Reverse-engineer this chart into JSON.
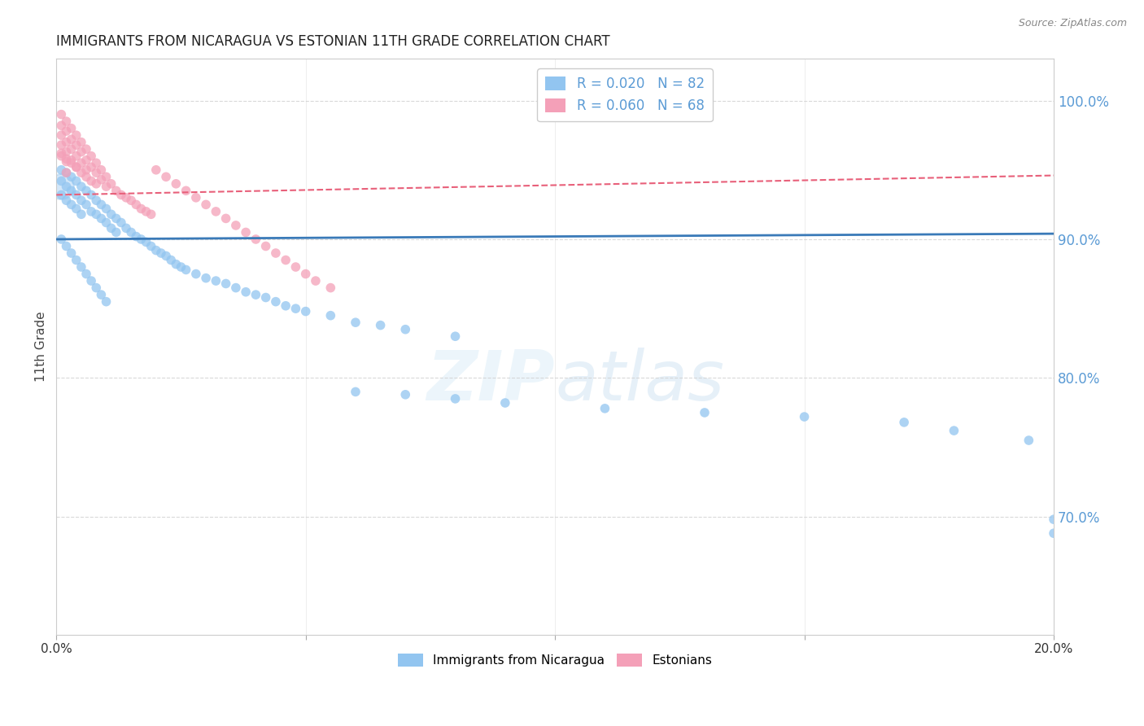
{
  "title": "IMMIGRANTS FROM NICARAGUA VS ESTONIAN 11TH GRADE CORRELATION CHART",
  "source": "Source: ZipAtlas.com",
  "ylabel": "11th Grade",
  "watermark": "ZIPatlas",
  "blue_r": 0.02,
  "blue_n": 82,
  "pink_r": 0.06,
  "pink_n": 68,
  "y_tick_labels": [
    "100.0%",
    "90.0%",
    "80.0%",
    "70.0%"
  ],
  "y_tick_values": [
    1.0,
    0.9,
    0.8,
    0.7
  ],
  "x_lim": [
    0.0,
    0.2
  ],
  "y_lim": [
    0.615,
    1.03
  ],
  "blue_color": "#92c5f0",
  "pink_color": "#f4a0b8",
  "blue_line_color": "#3a7ab8",
  "pink_line_color": "#e8607a",
  "grid_color": "#d0d0d0",
  "right_axis_color": "#5b9bd5",
  "title_fontsize": 12,
  "source_fontsize": 9,
  "blue_scatter_x": [
    0.001,
    0.001,
    0.001,
    0.002,
    0.002,
    0.002,
    0.003,
    0.003,
    0.003,
    0.004,
    0.004,
    0.004,
    0.005,
    0.005,
    0.005,
    0.006,
    0.006,
    0.007,
    0.007,
    0.008,
    0.008,
    0.009,
    0.009,
    0.01,
    0.01,
    0.011,
    0.011,
    0.012,
    0.012,
    0.013,
    0.014,
    0.015,
    0.016,
    0.017,
    0.018,
    0.019,
    0.02,
    0.021,
    0.022,
    0.023,
    0.024,
    0.025,
    0.026,
    0.028,
    0.03,
    0.032,
    0.034,
    0.036,
    0.038,
    0.04,
    0.042,
    0.044,
    0.046,
    0.048,
    0.05,
    0.055,
    0.06,
    0.065,
    0.07,
    0.08,
    0.001,
    0.002,
    0.003,
    0.004,
    0.005,
    0.006,
    0.007,
    0.008,
    0.009,
    0.01,
    0.06,
    0.07,
    0.08,
    0.09,
    0.11,
    0.13,
    0.15,
    0.17,
    0.18,
    0.195,
    0.2,
    0.2
  ],
  "blue_scatter_y": [
    0.95,
    0.942,
    0.932,
    0.948,
    0.938,
    0.928,
    0.945,
    0.935,
    0.925,
    0.942,
    0.932,
    0.922,
    0.938,
    0.928,
    0.918,
    0.935,
    0.925,
    0.932,
    0.92,
    0.928,
    0.918,
    0.925,
    0.915,
    0.922,
    0.912,
    0.918,
    0.908,
    0.915,
    0.905,
    0.912,
    0.908,
    0.905,
    0.902,
    0.9,
    0.898,
    0.895,
    0.892,
    0.89,
    0.888,
    0.885,
    0.882,
    0.88,
    0.878,
    0.875,
    0.872,
    0.87,
    0.868,
    0.865,
    0.862,
    0.86,
    0.858,
    0.855,
    0.852,
    0.85,
    0.848,
    0.845,
    0.84,
    0.838,
    0.835,
    0.83,
    0.9,
    0.895,
    0.89,
    0.885,
    0.88,
    0.875,
    0.87,
    0.865,
    0.86,
    0.855,
    0.79,
    0.788,
    0.785,
    0.782,
    0.778,
    0.775,
    0.772,
    0.768,
    0.762,
    0.755,
    0.698,
    0.688
  ],
  "pink_scatter_x": [
    0.001,
    0.001,
    0.001,
    0.001,
    0.001,
    0.002,
    0.002,
    0.002,
    0.002,
    0.002,
    0.002,
    0.003,
    0.003,
    0.003,
    0.003,
    0.004,
    0.004,
    0.004,
    0.004,
    0.005,
    0.005,
    0.005,
    0.006,
    0.006,
    0.006,
    0.007,
    0.007,
    0.008,
    0.008,
    0.009,
    0.009,
    0.01,
    0.01,
    0.011,
    0.012,
    0.013,
    0.014,
    0.015,
    0.016,
    0.017,
    0.018,
    0.019,
    0.02,
    0.022,
    0.024,
    0.026,
    0.028,
    0.03,
    0.032,
    0.034,
    0.036,
    0.038,
    0.04,
    0.042,
    0.044,
    0.046,
    0.048,
    0.05,
    0.052,
    0.055,
    0.001,
    0.002,
    0.003,
    0.004,
    0.005,
    0.006,
    0.007,
    0.008
  ],
  "pink_scatter_y": [
    0.99,
    0.982,
    0.975,
    0.968,
    0.96,
    0.985,
    0.978,
    0.97,
    0.963,
    0.956,
    0.948,
    0.98,
    0.972,
    0.965,
    0.957,
    0.975,
    0.968,
    0.96,
    0.952,
    0.97,
    0.963,
    0.955,
    0.965,
    0.957,
    0.95,
    0.96,
    0.952,
    0.955,
    0.948,
    0.95,
    0.943,
    0.945,
    0.938,
    0.94,
    0.935,
    0.932,
    0.93,
    0.928,
    0.925,
    0.922,
    0.92,
    0.918,
    0.95,
    0.945,
    0.94,
    0.935,
    0.93,
    0.925,
    0.92,
    0.915,
    0.91,
    0.905,
    0.9,
    0.895,
    0.89,
    0.885,
    0.88,
    0.875,
    0.87,
    0.865,
    0.962,
    0.958,
    0.955,
    0.952,
    0.948,
    0.945,
    0.942,
    0.94
  ],
  "blue_line_x": [
    0.0,
    0.2
  ],
  "blue_line_y": [
    0.9,
    0.904
  ],
  "pink_line_x": [
    0.0,
    0.2
  ],
  "pink_line_y": [
    0.932,
    0.946
  ]
}
